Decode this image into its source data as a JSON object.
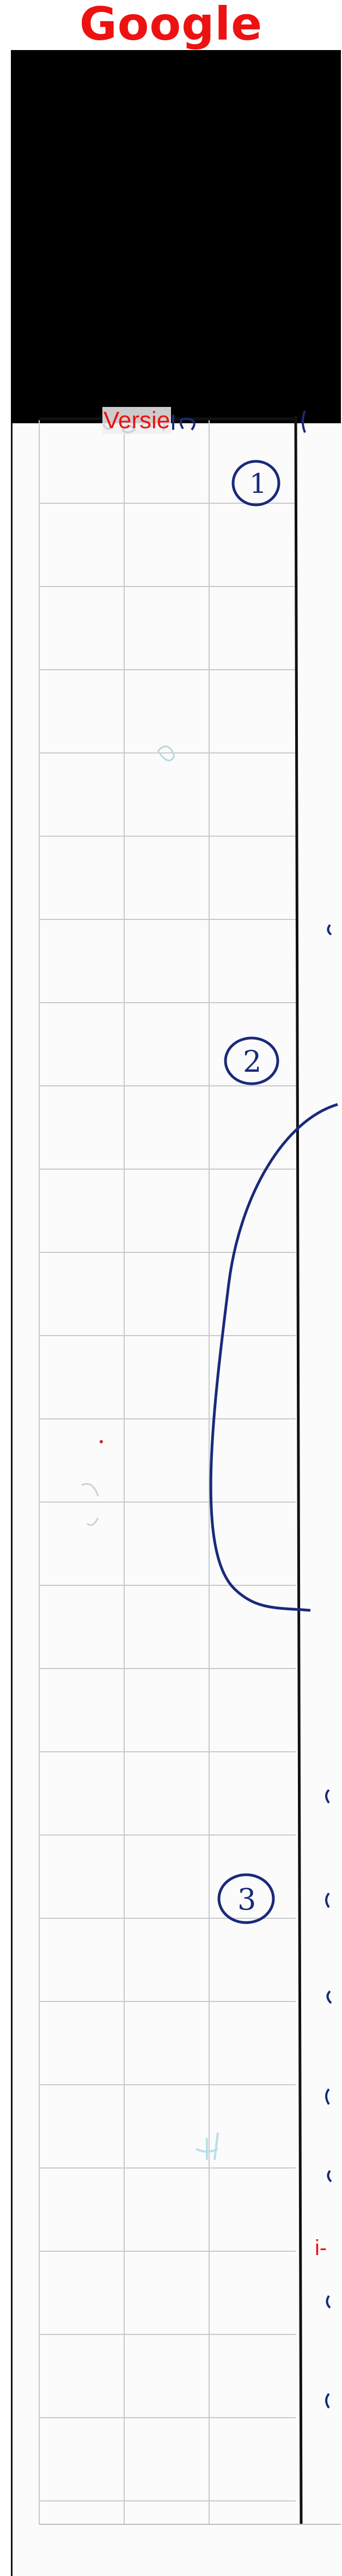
{
  "header": {
    "brand": "Google"
  },
  "scan": {
    "heading_overlay": "Versie",
    "margin_overlay": "i-",
    "question_numbers": [
      "1",
      "2",
      "3"
    ]
  },
  "colors": {
    "brand_red": "#ee1111",
    "ink_blue": "#1a2a7a",
    "grid_gray": "#c9c9cc",
    "black_panel": "#000000"
  }
}
